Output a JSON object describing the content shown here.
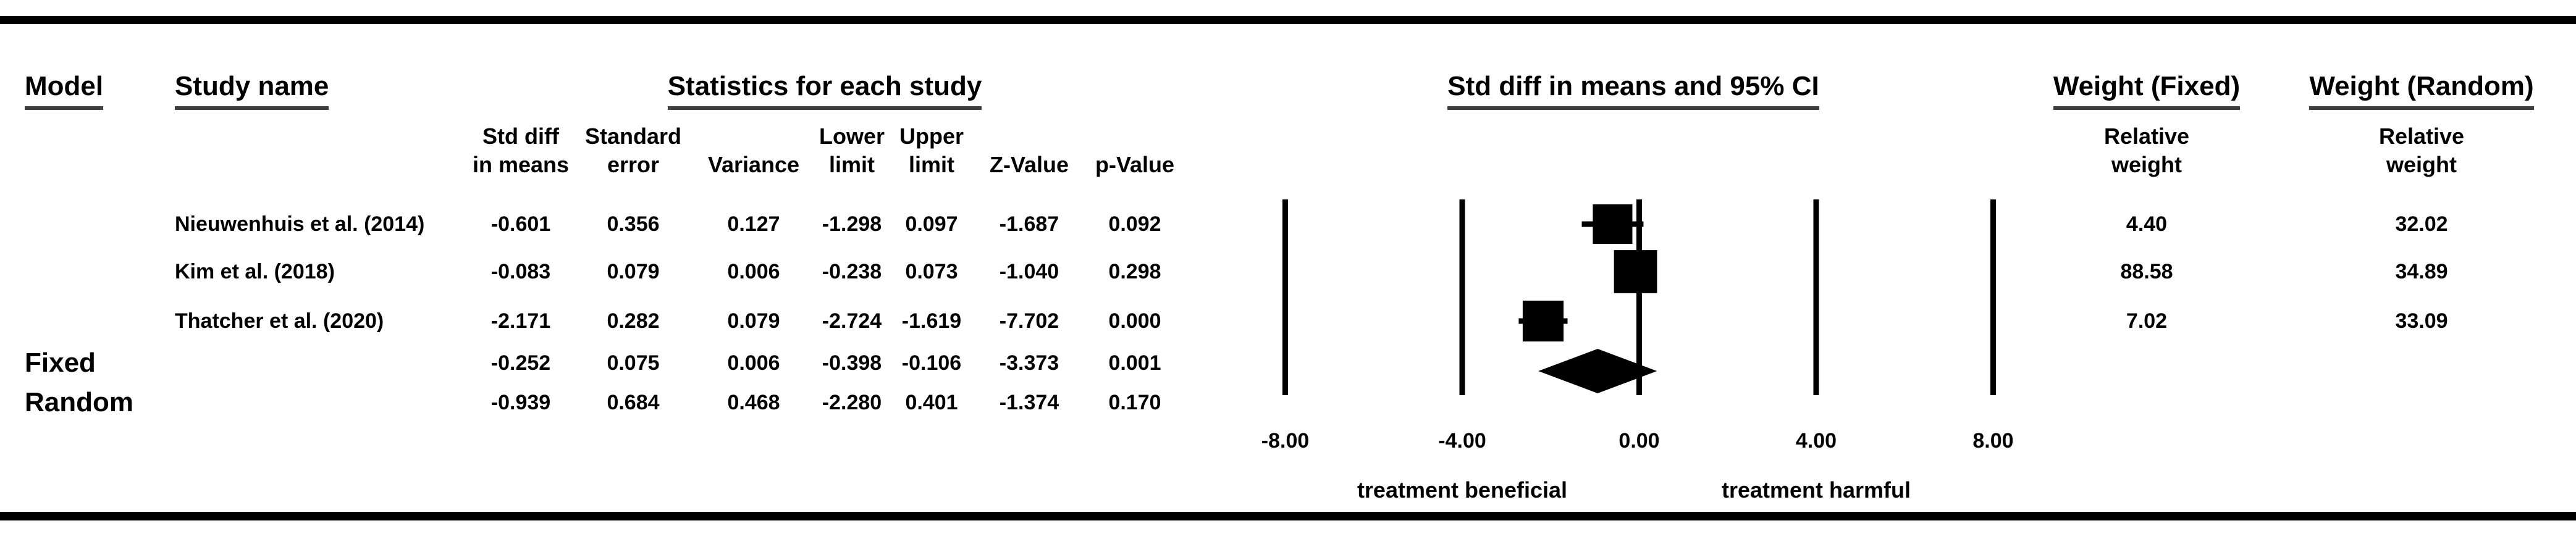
{
  "header": {
    "model": "Model",
    "study_name": "Study name",
    "stats_group": "Statistics for each study",
    "plot_group": "Std diff in means and 95% CI",
    "weight_fixed_group": "Weight (Fixed)",
    "weight_random_group": "Weight (Random)",
    "columns": {
      "std_diff_l1": "Std diff",
      "std_diff_l2": "in means",
      "std_err_l1": "Standard",
      "std_err_l2": "error",
      "variance": "Variance",
      "lower_l1": "Lower",
      "lower_l2": "limit",
      "upper_l1": "Upper",
      "upper_l2": "limit",
      "z_value": "Z-Value",
      "p_value": "p-Value",
      "relative_l1": "Relative",
      "relative_l2": "weight"
    }
  },
  "rows": [
    {
      "model": "",
      "study": "Nieuwenhuis et al. (2014)",
      "std_diff": "-0.601",
      "std_err": "0.356",
      "variance": "0.127",
      "lower": "-1.298",
      "upper": "0.097",
      "z": "-1.687",
      "p": "0.092",
      "w_fixed": "4.40",
      "w_random": "32.02"
    },
    {
      "model": "",
      "study": "Kim et al. (2018)",
      "std_diff": "-0.083",
      "std_err": "0.079",
      "variance": "0.006",
      "lower": "-0.238",
      "upper": "0.073",
      "z": "-1.040",
      "p": "0.298",
      "w_fixed": "88.58",
      "w_random": "34.89"
    },
    {
      "model": "",
      "study": "Thatcher et al. (2020)",
      "std_diff": "-2.171",
      "std_err": "0.282",
      "variance": "0.079",
      "lower": "-2.724",
      "upper": "-1.619",
      "z": "-7.702",
      "p": "0.000",
      "w_fixed": "7.02",
      "w_random": "33.09"
    },
    {
      "model": "Fixed",
      "study": "",
      "std_diff": "-0.252",
      "std_err": "0.075",
      "variance": "0.006",
      "lower": "-0.398",
      "upper": "-0.106",
      "z": "-3.373",
      "p": "0.001",
      "w_fixed": "",
      "w_random": ""
    },
    {
      "model": "Random",
      "study": "",
      "std_diff": "-0.939",
      "std_err": "0.684",
      "variance": "0.468",
      "lower": "-2.280",
      "upper": "0.401",
      "z": "-1.374",
      "p": "0.170",
      "w_fixed": "",
      "w_random": ""
    }
  ],
  "chart_data": {
    "type": "forest",
    "title": "Std diff in means and 95% CI",
    "effect_measure": "Std diff in means",
    "x_ticks": [
      -8,
      -4,
      0,
      4,
      8
    ],
    "x_tick_labels": [
      "-8.00",
      "-4.00",
      "0.00",
      "4.00",
      "8.00"
    ],
    "xlim": [
      -8.9,
      8.9
    ],
    "grid": "vertical-reference-lines",
    "direction_label_left": "treatment beneficial",
    "direction_label_right": "treatment harmful",
    "studies": [
      {
        "name": "Nieuwenhuis et al. (2014)",
        "mean": -0.601,
        "lower": -1.298,
        "upper": 0.097,
        "weight_fixed": 4.4,
        "weight_random": 32.02
      },
      {
        "name": "Kim et al. (2018)",
        "mean": -0.083,
        "lower": -0.238,
        "upper": 0.073,
        "weight_fixed": 88.58,
        "weight_random": 34.89
      },
      {
        "name": "Thatcher et al. (2020)",
        "mean": -2.171,
        "lower": -2.724,
        "upper": -1.619,
        "weight_fixed": 7.02,
        "weight_random": 33.09
      }
    ],
    "summaries": [
      {
        "model": "Fixed",
        "mean": -0.252,
        "lower": -0.398,
        "upper": -0.106
      },
      {
        "model": "Random",
        "mean": -0.939,
        "lower": -2.28,
        "upper": 0.401
      }
    ],
    "summary_diamond": {
      "mean": -0.939,
      "lower": -2.28,
      "upper": 0.401
    }
  }
}
